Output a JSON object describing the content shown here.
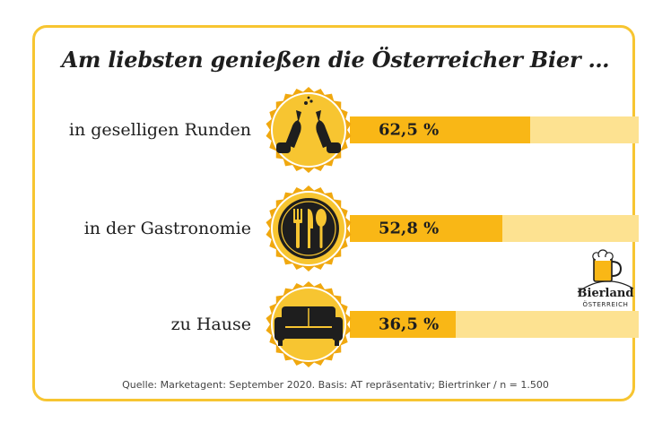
{
  "chart_data": {
    "type": "bar",
    "orientation": "horizontal",
    "title": "Am liebsten genießen die Österreicher Bier …",
    "categories": [
      "in geselligen Runden",
      "in der Gastronomie",
      "zu Hause"
    ],
    "values": [
      62.5,
      52.8,
      36.5
    ],
    "value_labels": [
      "62,5 %",
      "52,8 %",
      "36,5 %"
    ],
    "unit": "%",
    "xlim": [
      0,
      100
    ],
    "icons": [
      "toasting-bottles-icon",
      "cutlery-plate-icon",
      "sofa-icon"
    ],
    "source": "Quelle: Marketagent: September 2020. Basis: AT repräsentativ; Biertrinker / n = 1.500"
  },
  "logo": {
    "title": "Bierland",
    "subtitle": "ÖSTERREICH"
  },
  "colors": {
    "accent": "#f9b716",
    "track": "#fde291",
    "border": "#f7c531",
    "badge": "#f7c531",
    "badge_ring": "#f0a80f",
    "icon": "#1e1e1e"
  }
}
